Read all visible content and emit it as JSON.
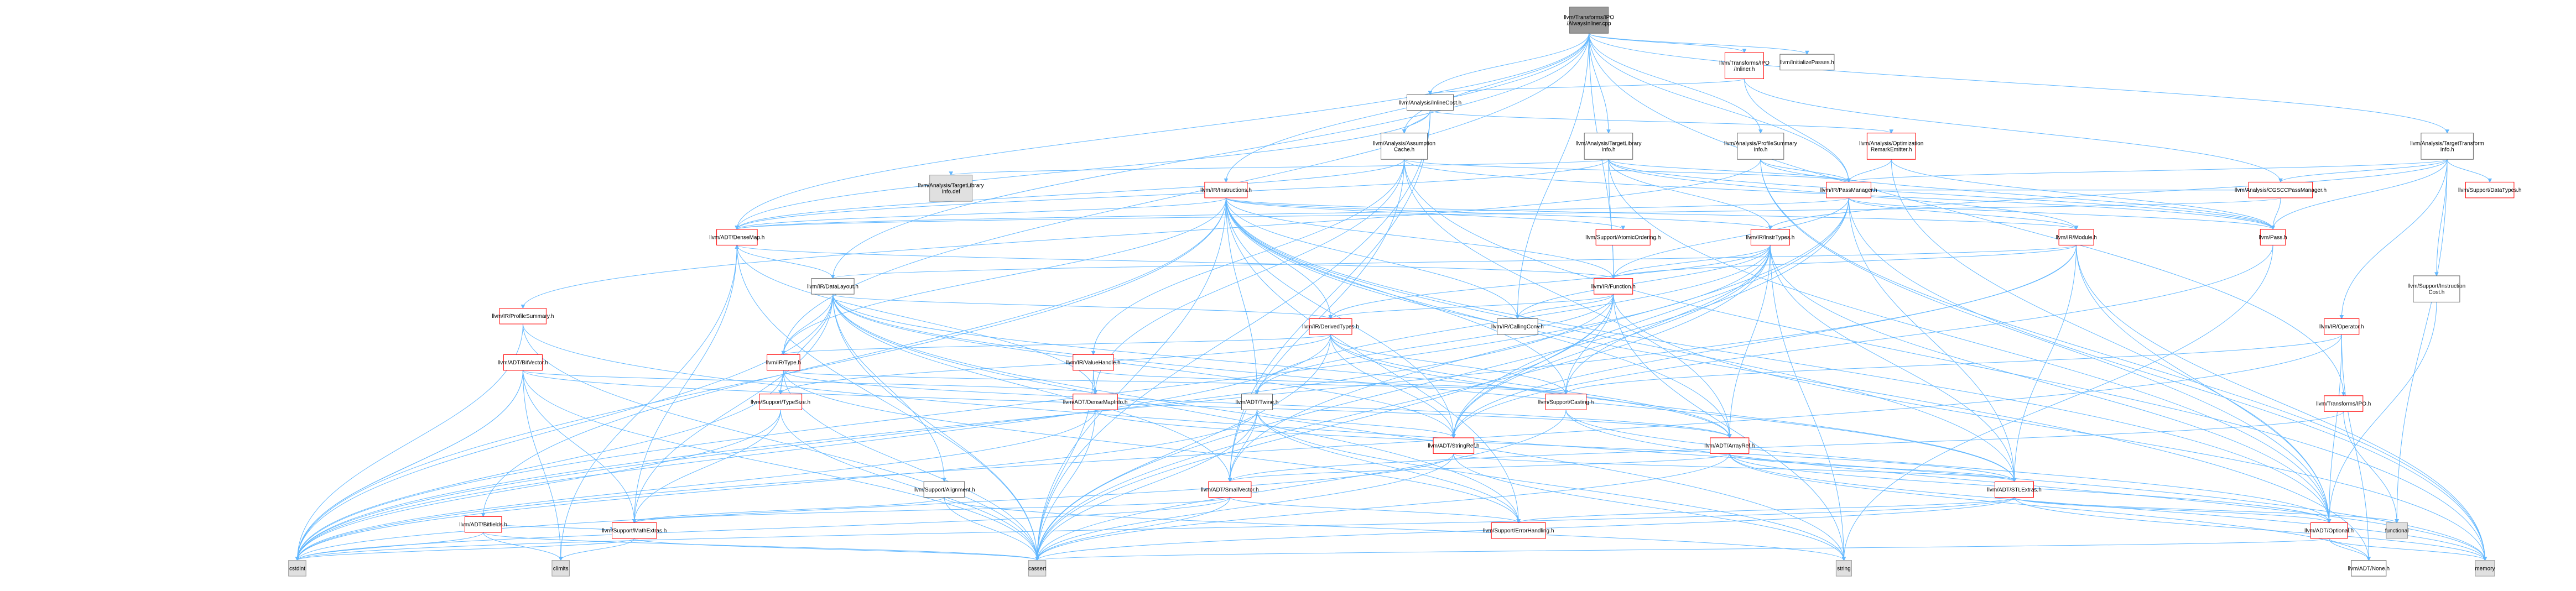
{
  "colors": {
    "root_fill": "#999999",
    "root_stroke": "#666666",
    "doc_fill": "#ffffff",
    "doc_stroke": "#666666",
    "red_stroke": "#ff0000",
    "ext_fill": "#e0e0e0",
    "ext_stroke": "#999999",
    "edge": "#63b8ff"
  },
  "nodes": [
    {
      "id": "root",
      "lines": [
        "llvm/Transforms/IPO",
        "/AlwaysInliner.cpp"
      ],
      "style": "root"
    },
    {
      "id": "inliner",
      "lines": [
        "llvm/Transforms/IPO",
        "/Inliner.h"
      ],
      "style": "red"
    },
    {
      "id": "initpasses",
      "lines": [
        "llvm/InitializePasses.h"
      ],
      "style": "doc"
    },
    {
      "id": "inlinecost",
      "lines": [
        "llvm/Analysis/InlineCost.h"
      ],
      "style": "doc"
    },
    {
      "id": "assumption",
      "lines": [
        "llvm/Analysis/Assumption",
        "Cache.h"
      ],
      "style": "doc"
    },
    {
      "id": "tli",
      "lines": [
        "llvm/Analysis/TargetLibrary",
        "Info.h"
      ],
      "style": "doc"
    },
    {
      "id": "profsum",
      "lines": [
        "llvm/Analysis/ProfileSummary",
        "Info.h"
      ],
      "style": "doc"
    },
    {
      "id": "ore",
      "lines": [
        "llvm/Analysis/Optimization",
        "RemarkEmitter.h"
      ],
      "style": "red"
    },
    {
      "id": "tti",
      "lines": [
        "llvm/Analysis/TargetTransform",
        "Info.h"
      ],
      "style": "doc"
    },
    {
      "id": "tlidef",
      "lines": [
        "llvm/Analysis/TargetLibrary",
        "Info.def"
      ],
      "style": "ext"
    },
    {
      "id": "instructions",
      "lines": [
        "llvm/IR/Instructions.h"
      ],
      "style": "red"
    },
    {
      "id": "passmanager",
      "lines": [
        "llvm/IR/PassManager.h"
      ],
      "style": "red"
    },
    {
      "id": "cgscc",
      "lines": [
        "llvm/Analysis/CGSCCPassManager.h"
      ],
      "style": "red"
    },
    {
      "id": "datatypes",
      "lines": [
        "llvm/Support/DataTypes.h"
      ],
      "style": "red"
    },
    {
      "id": "densemap",
      "lines": [
        "llvm/ADT/DenseMap.h"
      ],
      "style": "red"
    },
    {
      "id": "atomicord",
      "lines": [
        "llvm/Support/AtomicOrdering.h"
      ],
      "style": "red"
    },
    {
      "id": "insttypes",
      "lines": [
        "llvm/IR/InstrTypes.h"
      ],
      "style": "red"
    },
    {
      "id": "module",
      "lines": [
        "llvm/IR/Module.h"
      ],
      "style": "red"
    },
    {
      "id": "pass",
      "lines": [
        "llvm/Pass.h"
      ],
      "style": "red"
    },
    {
      "id": "instcost",
      "lines": [
        "llvm/Support/Instruction",
        "Cost.h"
      ],
      "style": "doc"
    },
    {
      "id": "datalayout",
      "lines": [
        "llvm/IR/DataLayout.h"
      ],
      "style": "doc"
    },
    {
      "id": "function",
      "lines": [
        "llvm/IR/Function.h"
      ],
      "style": "red"
    },
    {
      "id": "profsummary",
      "lines": [
        "llvm/IR/ProfileSummary.h"
      ],
      "style": "red"
    },
    {
      "id": "derivedtypes",
      "lines": [
        "llvm/IR/DerivedTypes.h"
      ],
      "style": "red"
    },
    {
      "id": "callingconv",
      "lines": [
        "llvm/IR/CallingConv.h"
      ],
      "style": "doc"
    },
    {
      "id": "operator",
      "lines": [
        "llvm/IR/Operator.h"
      ],
      "style": "red"
    },
    {
      "id": "bitvector",
      "lines": [
        "llvm/ADT/BitVector.h"
      ],
      "style": "red"
    },
    {
      "id": "irtype",
      "lines": [
        "llvm/IR/Type.h"
      ],
      "style": "red"
    },
    {
      "id": "valuehandle",
      "lines": [
        "llvm/IR/ValueHandle.h"
      ],
      "style": "red"
    },
    {
      "id": "typesize",
      "lines": [
        "llvm/Support/TypeSize.h"
      ],
      "style": "red"
    },
    {
      "id": "densemapinfo",
      "lines": [
        "llvm/ADT/DenseMapInfo.h"
      ],
      "style": "red"
    },
    {
      "id": "twine",
      "lines": [
        "llvm/ADT/Twine.h"
      ],
      "style": "doc"
    },
    {
      "id": "casting",
      "lines": [
        "llvm/Support/Casting.h"
      ],
      "style": "red"
    },
    {
      "id": "transipo",
      "lines": [
        "llvm/Transforms/IPO.h"
      ],
      "style": "red"
    },
    {
      "id": "stringref",
      "lines": [
        "llvm/ADT/StringRef.h"
      ],
      "style": "red"
    },
    {
      "id": "arrayref",
      "lines": [
        "llvm/ADT/ArrayRef.h"
      ],
      "style": "red"
    },
    {
      "id": "alignment",
      "lines": [
        "llvm/Support/Alignment.h"
      ],
      "style": "doc"
    },
    {
      "id": "smallvector",
      "lines": [
        "llvm/ADT/SmallVector.h"
      ],
      "style": "red"
    },
    {
      "id": "stlextras",
      "lines": [
        "llvm/ADT/STLExtras.h"
      ],
      "style": "red"
    },
    {
      "id": "bitfields",
      "lines": [
        "llvm/ADT/Bitfields.h"
      ],
      "style": "red"
    },
    {
      "id": "mathextras",
      "lines": [
        "llvm/Support/MathExtras.h"
      ],
      "style": "red"
    },
    {
      "id": "errorhandling",
      "lines": [
        "llvm/Support/ErrorHandling.h"
      ],
      "style": "red"
    },
    {
      "id": "optional",
      "lines": [
        "llvm/ADT/Optional.h"
      ],
      "style": "red"
    },
    {
      "id": "functional",
      "lines": [
        "functional"
      ],
      "style": "ext"
    },
    {
      "id": "climits",
      "lines": [
        "climits"
      ],
      "style": "ext"
    },
    {
      "id": "cstdint",
      "lines": [
        "cstdint"
      ],
      "style": "ext"
    },
    {
      "id": "cassert",
      "lines": [
        "cassert"
      ],
      "style": "ext"
    },
    {
      "id": "string",
      "lines": [
        "string"
      ],
      "style": "ext"
    },
    {
      "id": "memory",
      "lines": [
        "memory"
      ],
      "style": "ext"
    },
    {
      "id": "none",
      "lines": [
        "llvm/ADT/None.h"
      ],
      "style": "doc"
    }
  ],
  "edges": [
    [
      "root",
      "inliner"
    ],
    [
      "root",
      "initpasses"
    ],
    [
      "root",
      "inlinecost"
    ],
    [
      "root",
      "assumption"
    ],
    [
      "root",
      "tli"
    ],
    [
      "root",
      "profsum"
    ],
    [
      "root",
      "tti"
    ],
    [
      "root",
      "instructions"
    ],
    [
      "root",
      "passmanager"
    ],
    [
      "root",
      "transipo"
    ],
    [
      "root",
      "datalayout"
    ],
    [
      "root",
      "function"
    ],
    [
      "root",
      "callingconv"
    ],
    [
      "root",
      "irtype"
    ],
    [
      "root",
      "densemap"
    ],
    [
      "inliner",
      "inlinecost"
    ],
    [
      "inliner",
      "cgscc"
    ],
    [
      "inliner",
      "passmanager"
    ],
    [
      "inlinecost",
      "assumption"
    ],
    [
      "inlinecost",
      "ore"
    ],
    [
      "inlinecost",
      "densemap"
    ],
    [
      "inlinecost",
      "smallvector"
    ],
    [
      "inlinecost",
      "cassert"
    ],
    [
      "assumption",
      "densemap"
    ],
    [
      "assumption",
      "smallvector"
    ],
    [
      "assumption",
      "passmanager"
    ],
    [
      "assumption",
      "pass"
    ],
    [
      "assumption",
      "valuehandle"
    ],
    [
      "assumption",
      "densemapinfo"
    ],
    [
      "assumption",
      "memory"
    ],
    [
      "assumption",
      "arrayref"
    ],
    [
      "tli",
      "tlidef"
    ],
    [
      "tli",
      "densemap"
    ],
    [
      "tli",
      "passmanager"
    ],
    [
      "tli",
      "pass"
    ],
    [
      "tli",
      "function"
    ],
    [
      "tli",
      "module"
    ],
    [
      "tli",
      "optional"
    ],
    [
      "tli",
      "insttypes"
    ],
    [
      "profsum",
      "passmanager"
    ],
    [
      "profsum",
      "pass"
    ],
    [
      "profsum",
      "profsummary"
    ],
    [
      "profsum",
      "memory"
    ],
    [
      "profsum",
      "optional"
    ],
    [
      "ore",
      "passmanager"
    ],
    [
      "ore",
      "pass"
    ],
    [
      "ore",
      "optional"
    ],
    [
      "tti",
      "passmanager"
    ],
    [
      "tti",
      "pass"
    ],
    [
      "tti",
      "datatypes"
    ],
    [
      "tti",
      "instcost"
    ],
    [
      "tti",
      "operator"
    ],
    [
      "tti",
      "insttypes"
    ],
    [
      "tti",
      "functional"
    ],
    [
      "tti",
      "cgscc"
    ],
    [
      "instructions",
      "densemap"
    ],
    [
      "instructions",
      "insttypes"
    ],
    [
      "instructions",
      "atomicord"
    ],
    [
      "instructions",
      "derivedtypes"
    ],
    [
      "instructions",
      "function"
    ],
    [
      "instructions",
      "callingconv"
    ],
    [
      "instructions",
      "irtype"
    ],
    [
      "instructions",
      "casting"
    ],
    [
      "instructions",
      "errorhandling"
    ],
    [
      "instructions",
      "twine"
    ],
    [
      "instructions",
      "stringref"
    ],
    [
      "instructions",
      "arrayref"
    ],
    [
      "instructions",
      "stlextras"
    ],
    [
      "instructions",
      "bitfields"
    ],
    [
      "instructions",
      "cassert"
    ],
    [
      "instructions",
      "cstdint"
    ],
    [
      "instructions",
      "optional"
    ],
    [
      "instructions",
      "none"
    ],
    [
      "instructions",
      "module"
    ],
    [
      "passmanager",
      "module"
    ],
    [
      "passmanager",
      "function"
    ],
    [
      "passmanager",
      "densemap"
    ],
    [
      "passmanager",
      "stlextras"
    ],
    [
      "passmanager",
      "smallvector"
    ],
    [
      "passmanager",
      "pass"
    ],
    [
      "passmanager",
      "memory"
    ],
    [
      "passmanager",
      "cassert"
    ],
    [
      "passmanager",
      "stringref"
    ],
    [
      "cgscc",
      "passmanager"
    ],
    [
      "cgscc",
      "pass"
    ],
    [
      "cgscc",
      "densemap"
    ],
    [
      "densemap",
      "densemapinfo"
    ],
    [
      "densemap",
      "mathextras"
    ],
    [
      "densemap",
      "cassert"
    ],
    [
      "densemap",
      "climits"
    ],
    [
      "insttypes",
      "function"
    ],
    [
      "insttypes",
      "derivedtypes"
    ],
    [
      "insttypes",
      "callingconv"
    ],
    [
      "insttypes",
      "twine"
    ],
    [
      "insttypes",
      "stringref"
    ],
    [
      "insttypes",
      "arrayref"
    ],
    [
      "insttypes",
      "stlextras"
    ],
    [
      "insttypes",
      "casting"
    ],
    [
      "insttypes",
      "optional"
    ],
    [
      "insttypes",
      "cassert"
    ],
    [
      "insttypes",
      "cstdint"
    ],
    [
      "insttypes",
      "string"
    ],
    [
      "module",
      "function"
    ],
    [
      "module",
      "datalayout"
    ],
    [
      "module",
      "stringref"
    ],
    [
      "module",
      "stlextras"
    ],
    [
      "module",
      "optional"
    ],
    [
      "module",
      "memory"
    ],
    [
      "module",
      "cstdint"
    ],
    [
      "pass",
      "stringref"
    ],
    [
      "pass",
      "string"
    ],
    [
      "instcost",
      "optional"
    ],
    [
      "datalayout",
      "derivedtypes"
    ],
    [
      "datalayout",
      "irtype"
    ],
    [
      "datalayout",
      "densemap"
    ],
    [
      "datalayout",
      "arrayref"
    ],
    [
      "datalayout",
      "stringref"
    ],
    [
      "datalayout",
      "smallvector"
    ],
    [
      "datalayout",
      "alignment"
    ],
    [
      "datalayout",
      "typesize"
    ],
    [
      "datalayout",
      "mathextras"
    ],
    [
      "datalayout",
      "errorhandling"
    ],
    [
      "datalayout",
      "cassert"
    ],
    [
      "datalayout",
      "cstdint"
    ],
    [
      "datalayout",
      "string"
    ],
    [
      "datalayout",
      "stlextras"
    ],
    [
      "function",
      "derivedtypes"
    ],
    [
      "function",
      "callingconv"
    ],
    [
      "function",
      "twine"
    ],
    [
      "function",
      "stringref"
    ],
    [
      "function",
      "casting"
    ],
    [
      "function",
      "cassert"
    ],
    [
      "function",
      "cstdint"
    ],
    [
      "function",
      "memory"
    ],
    [
      "function",
      "string"
    ],
    [
      "function",
      "densemap"
    ],
    [
      "profsummary",
      "cassert"
    ],
    [
      "profsummary",
      "cstdint"
    ],
    [
      "profsummary",
      "memory"
    ],
    [
      "derivedtypes",
      "irtype"
    ],
    [
      "derivedtypes",
      "arrayref"
    ],
    [
      "derivedtypes",
      "stringref"
    ],
    [
      "derivedtypes",
      "stlextras"
    ],
    [
      "derivedtypes",
      "casting"
    ],
    [
      "derivedtypes",
      "typesize"
    ],
    [
      "derivedtypes",
      "cassert"
    ],
    [
      "derivedtypes",
      "cstdint"
    ],
    [
      "operator",
      "casting"
    ],
    [
      "operator",
      "optional"
    ],
    [
      "operator",
      "none"
    ],
    [
      "operator",
      "cstdint"
    ],
    [
      "bitvector",
      "arrayref"
    ],
    [
      "bitvector",
      "densemapinfo"
    ],
    [
      "bitvector",
      "mathextras"
    ],
    [
      "bitvector",
      "cassert"
    ],
    [
      "bitvector",
      "climits"
    ],
    [
      "bitvector",
      "cstdint"
    ],
    [
      "bitvector",
      "cstdint"
    ],
    [
      "irtype",
      "arrayref"
    ],
    [
      "irtype",
      "casting"
    ],
    [
      "irtype",
      "errorhandling"
    ],
    [
      "irtype",
      "typesize"
    ],
    [
      "irtype",
      "cassert"
    ],
    [
      "irtype",
      "cstdint"
    ],
    [
      "valuehandle",
      "densemapinfo"
    ],
    [
      "valuehandle",
      "casting"
    ],
    [
      "valuehandle",
      "cassert"
    ],
    [
      "typesize",
      "mathextras"
    ],
    [
      "typesize",
      "cassert"
    ],
    [
      "typesize",
      "cstdint"
    ],
    [
      "densemapinfo",
      "stlextras"
    ],
    [
      "densemapinfo",
      "cassert"
    ],
    [
      "densemapinfo",
      "cstdint"
    ],
    [
      "twine",
      "smallvector"
    ],
    [
      "twine",
      "stringref"
    ],
    [
      "twine",
      "errorhandling"
    ],
    [
      "twine",
      "cassert"
    ],
    [
      "twine",
      "cstdint"
    ],
    [
      "twine",
      "string"
    ],
    [
      "casting",
      "optional"
    ],
    [
      "casting",
      "cassert"
    ],
    [
      "casting",
      "memory"
    ],
    [
      "transipo",
      "functional"
    ],
    [
      "transipo",
      "smallvector"
    ],
    [
      "stringref",
      "stlextras"
    ],
    [
      "stringref",
      "string"
    ],
    [
      "stringref",
      "cassert"
    ],
    [
      "stringref",
      "cstdint"
    ],
    [
      "arrayref",
      "smallvector"
    ],
    [
      "arrayref",
      "stlextras"
    ],
    [
      "arrayref",
      "optional"
    ],
    [
      "arrayref",
      "none"
    ],
    [
      "arrayref",
      "cassert"
    ],
    [
      "arrayref",
      "memory"
    ],
    [
      "alignment",
      "mathextras"
    ],
    [
      "alignment",
      "cassert"
    ],
    [
      "alignment",
      "string"
    ],
    [
      "smallvector",
      "mathextras"
    ],
    [
      "smallvector",
      "errorhandling"
    ],
    [
      "smallvector",
      "cassert"
    ],
    [
      "smallvector",
      "cstdint"
    ],
    [
      "stlextras",
      "optional"
    ],
    [
      "stlextras",
      "errorhandling"
    ],
    [
      "stlextras",
      "functional"
    ],
    [
      "stlextras",
      "memory"
    ],
    [
      "stlextras",
      "cassert"
    ],
    [
      "stlextras",
      "cstdint"
    ],
    [
      "bitfields",
      "mathextras"
    ],
    [
      "bitfields",
      "cassert"
    ],
    [
      "bitfields",
      "climits"
    ],
    [
      "bitfields",
      "cstdint"
    ],
    [
      "mathextras",
      "cassert"
    ],
    [
      "mathextras",
      "climits"
    ],
    [
      "mathextras",
      "cstdint"
    ],
    [
      "optional",
      "none"
    ],
    [
      "optional",
      "cassert"
    ],
    [
      "optional",
      "memory"
    ]
  ]
}
